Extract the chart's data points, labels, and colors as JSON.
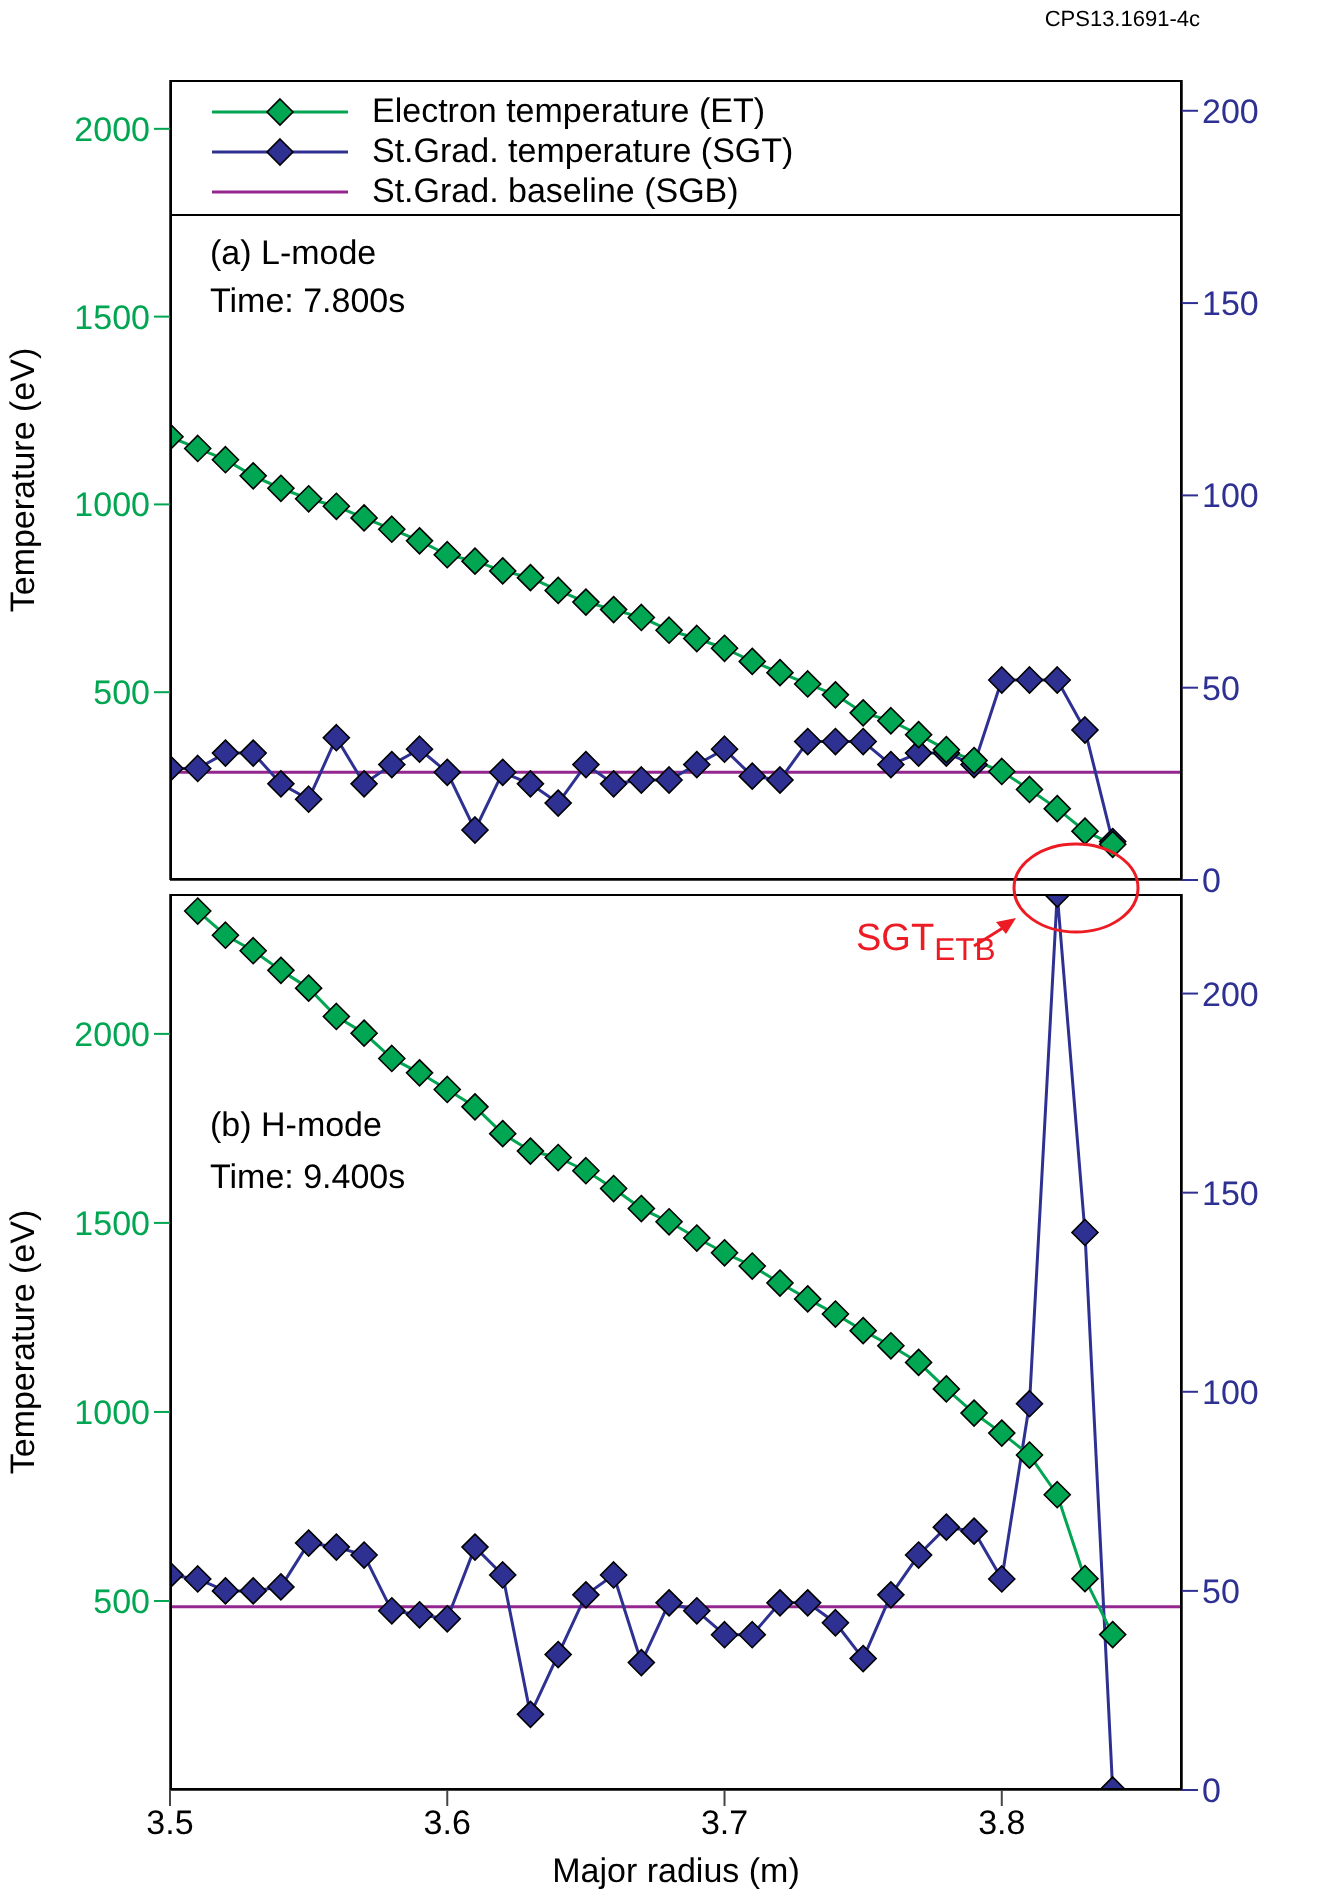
{
  "chart_data": [
    {
      "type": "line",
      "annotations": [
        "CPS13.1691-4c",
        "(a) L-mode",
        "Time: 7.800s"
      ],
      "ylabel": "Temperature (eV)",
      "x": [
        3.5,
        3.51,
        3.52,
        3.53,
        3.54,
        3.55,
        3.56,
        3.57,
        3.58,
        3.59,
        3.6,
        3.61,
        3.62,
        3.63,
        3.64,
        3.65,
        3.66,
        3.67,
        3.68,
        3.69,
        3.7,
        3.71,
        3.72,
        3.73,
        3.74,
        3.75,
        3.76,
        3.77,
        3.78,
        3.79,
        3.8,
        3.81,
        3.82,
        3.83,
        3.84
      ],
      "xlim": [
        3.5,
        3.865
      ],
      "xticks": [
        3.5,
        3.6,
        3.7,
        3.8
      ],
      "ylim": [
        0,
        2130
      ],
      "yticks": [
        500,
        1000,
        1500,
        2000
      ],
      "y2lim": [
        0,
        208
      ],
      "y2ticks": [
        0,
        50,
        100,
        150,
        200
      ],
      "tick_labels": "y",
      "legend": "top left",
      "marker": "diamond",
      "series": [
        {
          "name": "Electron temperature (ET)",
          "color": "#00a651",
          "values": [
            1180,
            1149,
            1119,
            1076,
            1043,
            1015,
            995,
            964,
            934,
            903,
            866,
            849,
            823,
            805,
            771,
            740,
            720,
            699,
            665,
            643,
            617,
            582,
            552,
            522,
            493,
            445,
            424,
            387,
            347,
            318,
            289,
            241,
            190,
            130,
            95
          ]
        },
        {
          "name": "St.Grad. temperature (SGT)",
          "color": "#2e3192",
          "axis": "y2",
          "values": [
            29,
            29,
            33,
            33,
            25,
            21,
            37,
            25,
            30,
            34,
            28,
            13,
            28,
            25,
            20,
            30,
            25,
            26,
            26,
            30,
            34,
            27,
            26,
            36,
            36,
            36,
            30,
            33,
            33,
            30,
            52,
            52,
            52,
            39,
            10
          ]
        },
        {
          "name": "St.Grad. baseline (SGB)",
          "color": "#93278f",
          "axis": "y2",
          "marker": "none",
          "x": [
            3.5,
            3.865
          ],
          "values": [
            28,
            28
          ]
        }
      ]
    },
    {
      "type": "line",
      "annotations": [
        "(b) H-mode",
        "Time: 9.400s",
        "SGT$_{ETB}$"
      ],
      "xlabel": "Major radius (m)",
      "ylabel": "Temperature (eV)",
      "x": [
        3.5,
        3.51,
        3.52,
        3.53,
        3.54,
        3.55,
        3.56,
        3.57,
        3.58,
        3.59,
        3.6,
        3.61,
        3.62,
        3.63,
        3.64,
        3.65,
        3.66,
        3.67,
        3.68,
        3.69,
        3.7,
        3.71,
        3.72,
        3.73,
        3.74,
        3.75,
        3.76,
        3.77,
        3.78,
        3.79,
        3.8,
        3.81,
        3.82,
        3.83,
        3.84
      ],
      "xlim": [
        3.5,
        3.865
      ],
      "xticks": [
        3.5,
        3.6,
        3.7,
        3.8
      ],
      "ylim": [
        0,
        2370
      ],
      "yticks": [
        500,
        1000,
        1500,
        2000
      ],
      "y2lim": [
        0,
        225
      ],
      "y2ticks": [
        0,
        50,
        100,
        150,
        200
      ],
      "marker": "diamond",
      "series": [
        {
          "color": "#00a651",
          "x": [
            3.51,
            3.52,
            3.53,
            3.54,
            3.55,
            3.56,
            3.57,
            3.58,
            3.59,
            3.6,
            3.61,
            3.62,
            3.63,
            3.64,
            3.65,
            3.66,
            3.67,
            3.68,
            3.69,
            3.7,
            3.71,
            3.72,
            3.73,
            3.74,
            3.75,
            3.76,
            3.77,
            3.78,
            3.79,
            3.8,
            3.81,
            3.82,
            3.83,
            3.84
          ],
          "values": [
            2325,
            2261,
            2220,
            2168,
            2121,
            2046,
            2002,
            1935,
            1897,
            1853,
            1807,
            1736,
            1690,
            1673,
            1638,
            1591,
            1538,
            1503,
            1460,
            1421,
            1386,
            1341,
            1299,
            1259,
            1215,
            1175,
            1131,
            1061,
            997,
            944,
            886,
            781,
            559,
            411
          ]
        },
        {
          "color": "#2e3192",
          "axis": "y2",
          "values": [
            54,
            53,
            50,
            50,
            51,
            62,
            61,
            59,
            45,
            44,
            43,
            61,
            54,
            19,
            34,
            49,
            54,
            32,
            47,
            45,
            39,
            39,
            47,
            47,
            42,
            33,
            49,
            59,
            66,
            65,
            53,
            97,
            225,
            140,
            0
          ]
        },
        {
          "color": "#93278f",
          "axis": "y2",
          "marker": "none",
          "x": [
            3.5,
            3.865
          ],
          "values": [
            46,
            46
          ]
        }
      ]
    }
  ]
}
